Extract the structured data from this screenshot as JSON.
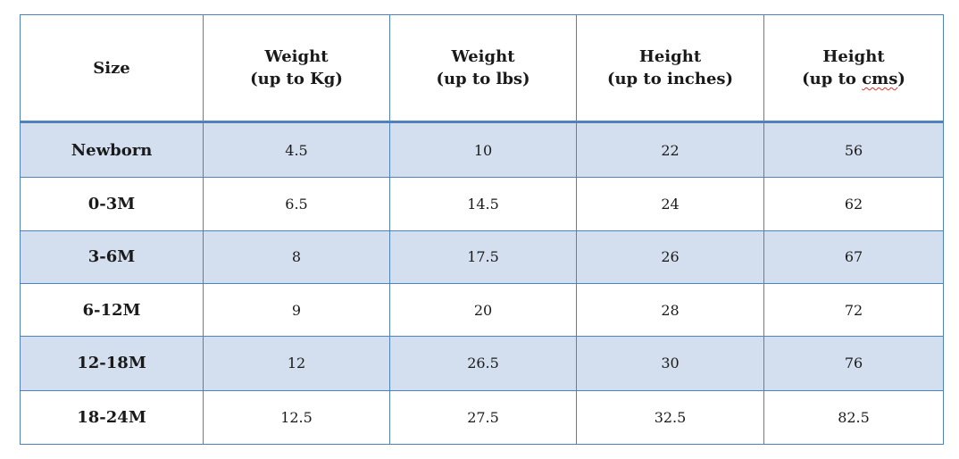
{
  "table": {
    "headers": [
      {
        "line1": "Size",
        "line2": ""
      },
      {
        "line1": "Weight",
        "line2_open": "(up to Kg)",
        "line2_word": "",
        "line2_close": ""
      },
      {
        "line1": "Weight",
        "line2_open": "(up to lbs)",
        "line2_word": "",
        "line2_close": ""
      },
      {
        "line1": "Height",
        "line2_open": "(up to inches)",
        "line2_word": "",
        "line2_close": ""
      },
      {
        "line1": "Height",
        "line2_open": "(up to ",
        "line2_word": "cms",
        "line2_close": ")"
      }
    ],
    "rows": [
      [
        "Newborn",
        "4.5",
        "10",
        "22",
        "56"
      ],
      [
        "0-3M",
        "6.5",
        "14.5",
        "24",
        "62"
      ],
      [
        "3-6M",
        "8",
        "17.5",
        "26",
        "67"
      ],
      [
        "6-12M",
        "9",
        "20",
        "28",
        "72"
      ],
      [
        "12-18M",
        "12",
        "26.5",
        "30",
        "76"
      ],
      [
        "18-24M",
        "12.5",
        "27.5",
        "32.5",
        "82.5"
      ]
    ],
    "colors": {
      "border": "#4f81bd",
      "band": "#d3dfee",
      "spellcheck": "#d9342b"
    }
  }
}
